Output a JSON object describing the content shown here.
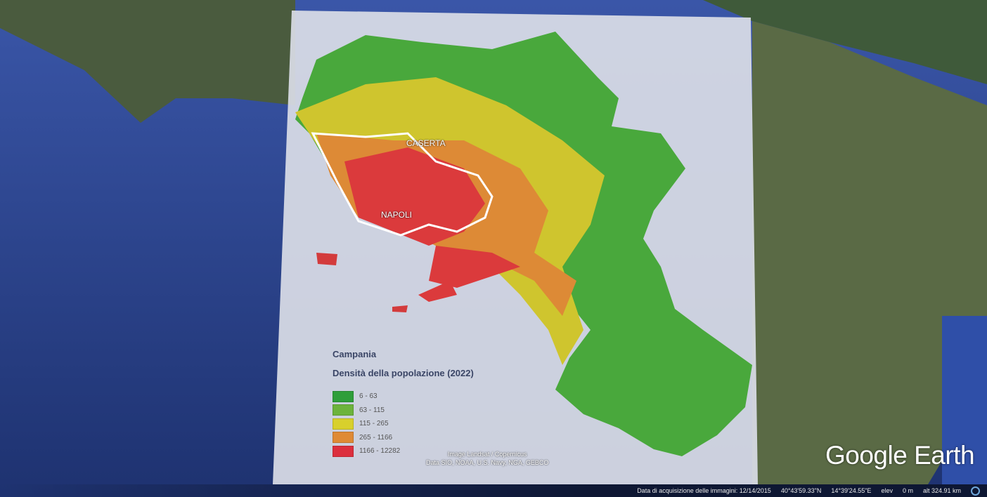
{
  "map": {
    "region_title": "Campania",
    "subtitle": "Densità della popolazione (2022)",
    "legend": [
      {
        "label": "6 - 63",
        "color": "#2e9e3a"
      },
      {
        "label": "63 - 115",
        "color": "#6cb33c"
      },
      {
        "label": "115 - 265",
        "color": "#d8d02c"
      },
      {
        "label": "265 - 1166",
        "color": "#df8a35"
      },
      {
        "label": "1166 - 12282",
        "color": "#dc2f3e"
      }
    ],
    "cities": [
      "CASERTA",
      "NAPOLI"
    ],
    "credits": [
      "Image Landsat / Copernicus",
      "Data SIO, NOAA, U.S. Navy, NGA, GEBCO"
    ]
  },
  "app": {
    "logo": "Google Earth"
  },
  "status": {
    "imagery_date": "Data di acquisizione delle immagini: 12/14/2015",
    "lat": "40°43'59.33\"N",
    "lon": "14°39'24.55\"E",
    "elev_label": "elev",
    "elev": "0 m",
    "alt": "alt 324.91 km"
  }
}
